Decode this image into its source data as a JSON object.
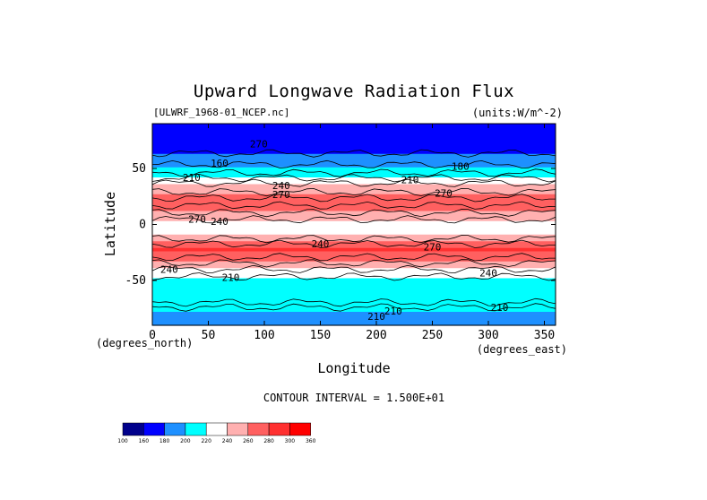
{
  "chart_data": {
    "type": "heatmap",
    "title": "Upward Longwave Radiation Flux",
    "dataset_label": "[ULWRF_1968-01_NCEP.nc]",
    "units_label": "(units:W/m^-2)",
    "xlabel": "Longitude",
    "ylabel": "Latitude",
    "x_unit_label": "(degrees_east)",
    "y_unit_label": "(degrees_north)",
    "xlim": [
      0,
      360
    ],
    "ylim": [
      -90,
      90
    ],
    "x_ticks": [
      0,
      50,
      100,
      150,
      200,
      250,
      300,
      350
    ],
    "y_ticks": [
      -50,
      0,
      50
    ],
    "contour_interval_text": "CONTOUR INTERVAL = 1.500E+01",
    "colorbar": {
      "labels": [
        "100",
        "160",
        "180",
        "200",
        "220",
        "240",
        "260",
        "280",
        "300",
        "360"
      ],
      "colors": [
        "#00008b",
        "#0000ff",
        "#1e90ff",
        "#00ffff",
        "#ffffff",
        "#ffb0b0",
        "#ff6060",
        "#ff3030",
        "#ff0000"
      ]
    },
    "lat_profile": [
      {
        "lat": 90,
        "value": 170
      },
      {
        "lat": 82,
        "value": 165
      },
      {
        "lat": 75,
        "value": 170
      },
      {
        "lat": 65,
        "value": 178
      },
      {
        "lat": 55,
        "value": 192
      },
      {
        "lat": 45,
        "value": 212
      },
      {
        "lat": 38,
        "value": 238
      },
      {
        "lat": 30,
        "value": 252
      },
      {
        "lat": 22,
        "value": 275
      },
      {
        "lat": 15,
        "value": 268
      },
      {
        "lat": 8,
        "value": 248
      },
      {
        "lat": 0,
        "value": 230
      },
      {
        "lat": -8,
        "value": 240
      },
      {
        "lat": -15,
        "value": 262
      },
      {
        "lat": -22,
        "value": 285
      },
      {
        "lat": -30,
        "value": 268
      },
      {
        "lat": -38,
        "value": 245
      },
      {
        "lat": -46,
        "value": 226
      },
      {
        "lat": -55,
        "value": 210
      },
      {
        "lat": -65,
        "value": 200
      },
      {
        "lat": -72,
        "value": 215
      },
      {
        "lat": -80,
        "value": 195
      },
      {
        "lat": -90,
        "value": 185
      }
    ],
    "contour_labels": [
      {
        "text": "270",
        "lon": 95,
        "lat": 72
      },
      {
        "text": "160",
        "lon": 60,
        "lat": 55
      },
      {
        "text": "180",
        "lon": 275,
        "lat": 52
      },
      {
        "text": "210",
        "lon": 35,
        "lat": 42
      },
      {
        "text": "210",
        "lon": 230,
        "lat": 40
      },
      {
        "text": "240",
        "lon": 115,
        "lat": 35
      },
      {
        "text": "270",
        "lon": 115,
        "lat": 27
      },
      {
        "text": "270",
        "lon": 260,
        "lat": 28
      },
      {
        "text": "270",
        "lon": 40,
        "lat": 5
      },
      {
        "text": "240",
        "lon": 60,
        "lat": 3
      },
      {
        "text": "240",
        "lon": 150,
        "lat": -17
      },
      {
        "text": "270",
        "lon": 250,
        "lat": -20
      },
      {
        "text": "240",
        "lon": 15,
        "lat": -40
      },
      {
        "text": "240",
        "lon": 300,
        "lat": -43
      },
      {
        "text": "210",
        "lon": 70,
        "lat": -47
      },
      {
        "text": "210",
        "lon": 215,
        "lat": -77
      },
      {
        "text": "210",
        "lon": 200,
        "lat": -82
      },
      {
        "text": "210",
        "lon": 310,
        "lat": -74
      }
    ]
  }
}
